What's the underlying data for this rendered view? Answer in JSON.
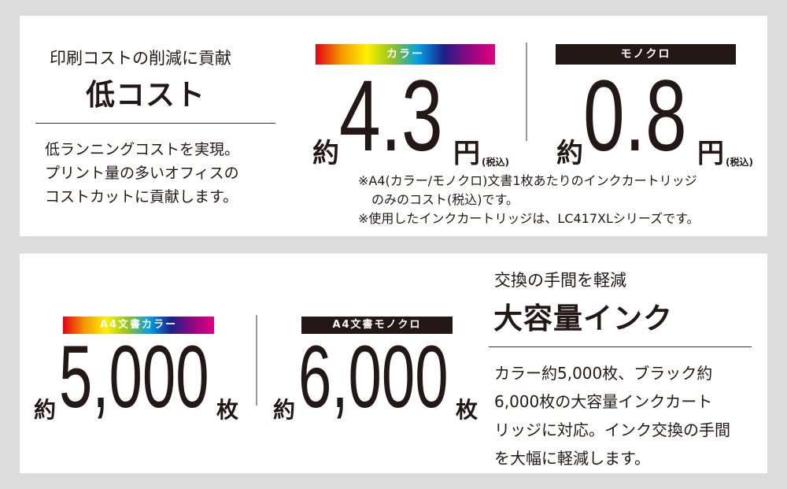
{
  "cost": {
    "subtitle": "印刷コストの削減に貢献",
    "title": "低コスト",
    "body": [
      "低ランニングコストを実現。",
      "プリント量の多いオフィスの",
      "コストカットに貢献します。"
    ],
    "color": {
      "badge": "カラー",
      "prefix": "約",
      "value": "4.3",
      "unit": "円",
      "tax": "(税込)"
    },
    "mono": {
      "badge": "モノクロ",
      "prefix": "約",
      "value": "0.8",
      "unit": "円",
      "tax": "(税込)"
    },
    "notes": [
      "※A4(カラー/モノクロ)文書1枚あたりのインクカートリッジ",
      "のみのコスト(税込)です。",
      "※使用したインクカートリッジは、LC417XLシリーズです。"
    ]
  },
  "capacity": {
    "subtitle": "交換の手間を軽減",
    "title": "大容量インク",
    "body": [
      "カラー約5,000枚、ブラック約",
      "6,000枚の大容量インクカート",
      "リッジに対応。インク交換の手間",
      "を大幅に軽減します。"
    ],
    "color": {
      "badge": "A4文書カラー",
      "prefix": "約",
      "value": "5,000",
      "unit": "枚"
    },
    "mono": {
      "badge": "A4文書モノクロ",
      "prefix": "約",
      "value": "6,000",
      "unit": "枚"
    }
  },
  "colors": {
    "background": "#dcdcdc",
    "panel": "#ffffff",
    "text": "#231815"
  }
}
